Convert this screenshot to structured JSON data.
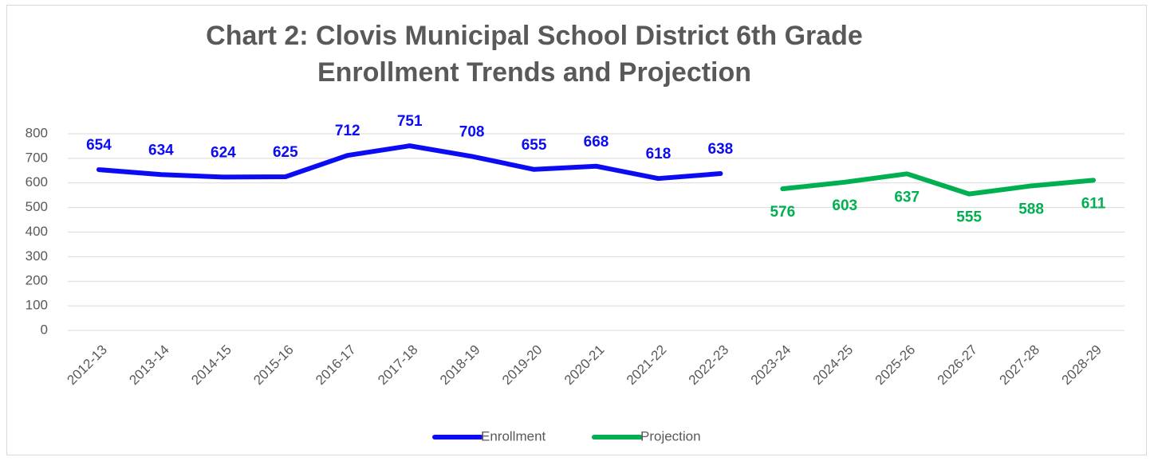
{
  "chart_data": {
    "type": "line",
    "title": "Chart 2: Clovis Municipal School District 6th Grade Enrollment Trends and Projection",
    "categories": [
      "2012-13",
      "2013-14",
      "2014-15",
      "2015-16",
      "2016-17",
      "2017-18",
      "2018-19",
      "2019-20",
      "2020-21",
      "2021-22",
      "2022-23",
      "2023-24",
      "2024-25",
      "2025-26",
      "2026-27",
      "2027-28",
      "2028-29"
    ],
    "series": [
      {
        "name": "Enrollment",
        "color": "#0c0cf2",
        "values": [
          654,
          634,
          624,
          625,
          712,
          751,
          708,
          655,
          668,
          618,
          638,
          null,
          null,
          null,
          null,
          null,
          null
        ]
      },
      {
        "name": "Projection",
        "color": "#00b050",
        "values": [
          null,
          null,
          null,
          null,
          null,
          null,
          null,
          null,
          null,
          null,
          null,
          576,
          603,
          637,
          555,
          588,
          611
        ]
      }
    ],
    "ylim": [
      0,
      800
    ],
    "yticks": [
      0,
      100,
      200,
      300,
      400,
      500,
      600,
      700,
      800
    ],
    "grid": true,
    "legend": "bottom"
  }
}
